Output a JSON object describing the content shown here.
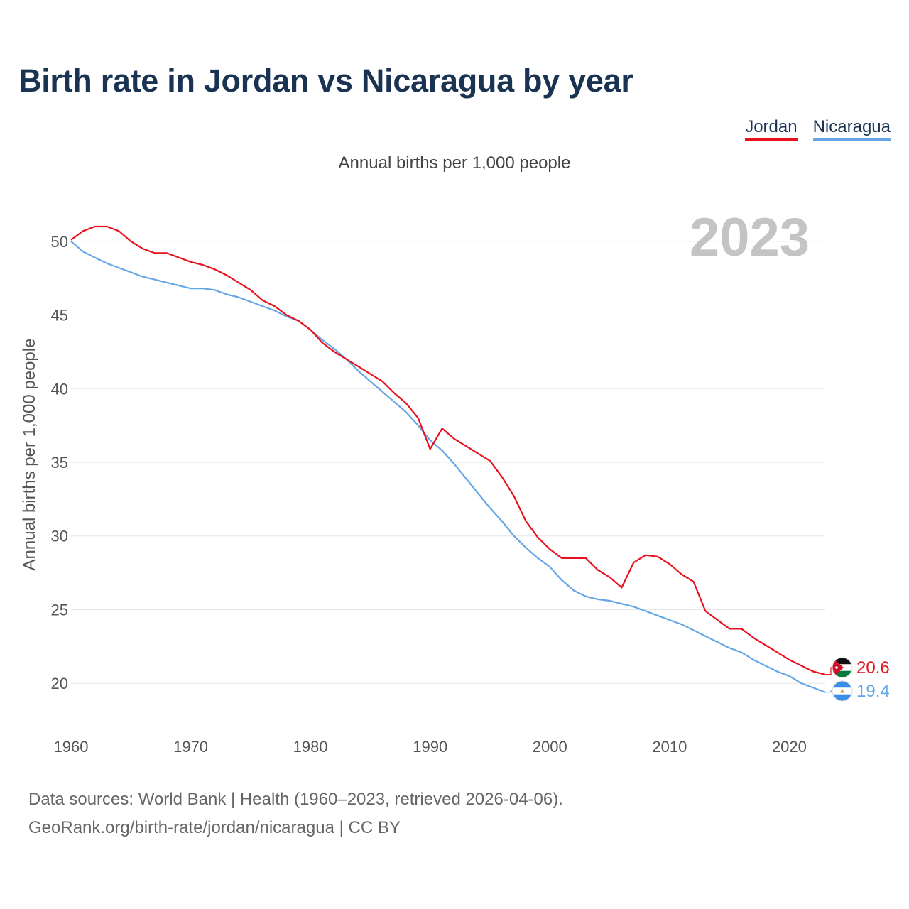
{
  "chart_data": {
    "type": "line",
    "title": "Birth rate in Jordan vs Nicaragua by year",
    "subtitle": "Annual births per 1,000 people",
    "ylabel": "Annual births per 1,000 people",
    "xlabel": "",
    "xlim": [
      1960,
      2023
    ],
    "ylim": [
      17.6,
      52.4
    ],
    "x_ticks": [
      1960,
      1970,
      1980,
      1990,
      2000,
      2010,
      2020
    ],
    "y_ticks": [
      20,
      25,
      30,
      35,
      40,
      45,
      50
    ],
    "grid": true,
    "year_watermark": "2023",
    "x": [
      1960,
      1961,
      1962,
      1963,
      1964,
      1965,
      1966,
      1967,
      1968,
      1969,
      1970,
      1971,
      1972,
      1973,
      1974,
      1975,
      1976,
      1977,
      1978,
      1979,
      1980,
      1981,
      1982,
      1983,
      1984,
      1985,
      1986,
      1987,
      1988,
      1989,
      1990,
      1991,
      1992,
      1993,
      1994,
      1995,
      1996,
      1997,
      1998,
      1999,
      2000,
      2001,
      2002,
      2003,
      2004,
      2005,
      2006,
      2007,
      2008,
      2009,
      2010,
      2011,
      2012,
      2013,
      2014,
      2015,
      2016,
      2017,
      2018,
      2019,
      2020,
      2021,
      2022,
      2023
    ],
    "series": [
      {
        "name": "Jordan",
        "color": "#e8111d",
        "end_label": "20.6",
        "flag": "jordan-flag-icon",
        "values": [
          50.1,
          50.7,
          51.0,
          51.0,
          50.7,
          50.0,
          49.5,
          49.2,
          49.2,
          48.9,
          48.6,
          48.4,
          48.1,
          47.7,
          47.2,
          46.7,
          46.0,
          45.6,
          45.0,
          44.6,
          44.0,
          43.1,
          42.5,
          42.0,
          41.5,
          41.0,
          40.5,
          39.7,
          39.0,
          38.0,
          35.9,
          37.3,
          36.6,
          36.1,
          35.6,
          35.1,
          34.0,
          32.7,
          31.0,
          29.9,
          29.1,
          28.5,
          28.5,
          28.5,
          27.7,
          27.2,
          26.5,
          28.2,
          28.7,
          28.6,
          28.1,
          27.4,
          26.9,
          24.9,
          24.3,
          23.7,
          23.7,
          23.1,
          22.6,
          22.1,
          21.6,
          21.2,
          20.8,
          20.6
        ]
      },
      {
        "name": "Nicaragua",
        "color": "#64a6e6",
        "end_label": "19.4",
        "flag": "nicaragua-flag-icon",
        "values": [
          50.0,
          49.3,
          48.9,
          48.5,
          48.2,
          47.9,
          47.6,
          47.4,
          47.2,
          47.0,
          46.8,
          46.8,
          46.7,
          46.4,
          46.2,
          45.9,
          45.6,
          45.3,
          44.9,
          44.6,
          44.0,
          43.3,
          42.7,
          42.0,
          41.2,
          40.5,
          39.8,
          39.1,
          38.4,
          37.5,
          36.5,
          35.8,
          34.9,
          33.9,
          32.9,
          31.9,
          31.0,
          30.0,
          29.2,
          28.5,
          27.9,
          27.0,
          26.3,
          25.9,
          25.7,
          25.6,
          25.4,
          25.2,
          24.9,
          24.6,
          24.3,
          24.0,
          23.6,
          23.2,
          22.8,
          22.4,
          22.1,
          21.6,
          21.2,
          20.8,
          20.5,
          20.0,
          19.7,
          19.4
        ]
      }
    ]
  },
  "source": {
    "line1": "Data sources: World Bank | Health (1960–2023, retrieved 2026-04-06).",
    "line2": "GeoRank.org/birth-rate/jordan/nicaragua | CC BY"
  }
}
